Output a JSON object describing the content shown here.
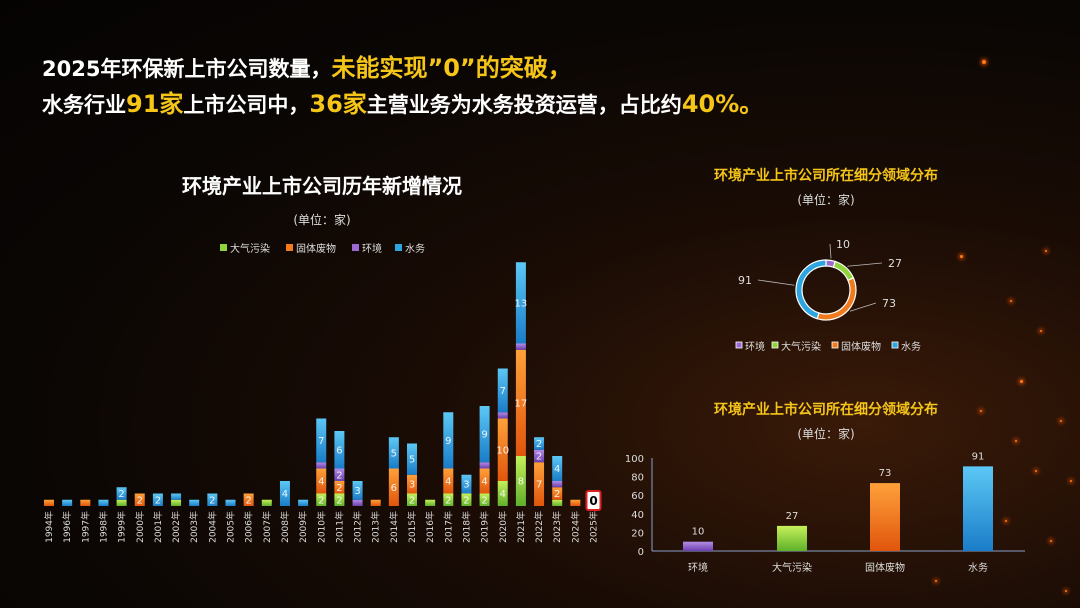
{
  "headline": {
    "line1_a": "2025年环保新上市公司数量，",
    "line1_b": "未能实现”0”的突破，",
    "line2_a": "水务行业",
    "line2_b": "91家",
    "line2_c": "上市公司中，",
    "line2_d": "36家",
    "line2_e": "主营业务为水务投资运营，占比约",
    "line2_f": "40%。"
  },
  "colors": {
    "大气污染": "#8fd43a",
    "固体废物": "#f07a1c",
    "环境": "#9b6ad0",
    "水务": "#2ea4e0",
    "title_gold": "#f5c518"
  },
  "chart_data": [
    {
      "type": "bar",
      "stacked": true,
      "title": "环境产业上市公司历年新增情况",
      "subtitle": "(单位：家)",
      "legend": [
        "大气污染",
        "固体废物",
        "环境",
        "水务"
      ],
      "legend_position": "top",
      "categories": [
        "1994年",
        "1996年",
        "1997年",
        "1998年",
        "1999年",
        "2000年",
        "2001年",
        "2002年",
        "2003年",
        "2004年",
        "2005年",
        "2006年",
        "2007年",
        "2008年",
        "2009年",
        "2010年",
        "2011年",
        "2012年",
        "2013年",
        "2014年",
        "2015年",
        "2016年",
        "2017年",
        "2018年",
        "2019年",
        "2020年",
        "2021年",
        "2022年",
        "2023年",
        "2024年",
        "2025年"
      ],
      "series": [
        {
          "name": "大气污染",
          "values": [
            0,
            0,
            0,
            0,
            1,
            0,
            0,
            1,
            0,
            0,
            0,
            0,
            1,
            0,
            0,
            2,
            2,
            0,
            0,
            0,
            2,
            1,
            2,
            2,
            2,
            4,
            8,
            0,
            1,
            0,
            0
          ]
        },
        {
          "name": "固体废物",
          "values": [
            1,
            0,
            1,
            0,
            0,
            2,
            0,
            0,
            0,
            0,
            0,
            2,
            0,
            0,
            0,
            4,
            2,
            0,
            1,
            6,
            3,
            0,
            4,
            0,
            4,
            10,
            17,
            7,
            2,
            1,
            0
          ]
        },
        {
          "name": "环境",
          "values": [
            0,
            0,
            0,
            0,
            0,
            0,
            0,
            0,
            0,
            0,
            0,
            0,
            0,
            0,
            0,
            1,
            2,
            1,
            0,
            0,
            0,
            0,
            0,
            0,
            1,
            1,
            1,
            2,
            1,
            0,
            0
          ]
        },
        {
          "name": "水务",
          "values": [
            0,
            1,
            0,
            1,
            2,
            0,
            2,
            1,
            1,
            2,
            1,
            0,
            0,
            4,
            1,
            7,
            6,
            3,
            0,
            5,
            5,
            0,
            9,
            3,
            9,
            7,
            13,
            2,
            4,
            0,
            0
          ]
        }
      ],
      "highlight_label": "0"
    },
    {
      "type": "pie",
      "donut": true,
      "title": "环境产业上市公司所在细分领域分布",
      "subtitle": "(单位：家)",
      "categories": [
        "环境",
        "大气污染",
        "固体废物",
        "水务"
      ],
      "values": [
        10,
        27,
        73,
        91
      ],
      "legend_position": "bottom"
    },
    {
      "type": "bar",
      "title": "环境产业上市公司所在细分领域分布",
      "subtitle": "(单位：家)",
      "categories": [
        "环境",
        "大气污染",
        "固体废物",
        "水务"
      ],
      "values": [
        10,
        27,
        73,
        91
      ],
      "ylim": [
        0,
        100
      ],
      "yticks": [
        "0",
        "20",
        "40",
        "60",
        "80",
        "100"
      ]
    }
  ]
}
